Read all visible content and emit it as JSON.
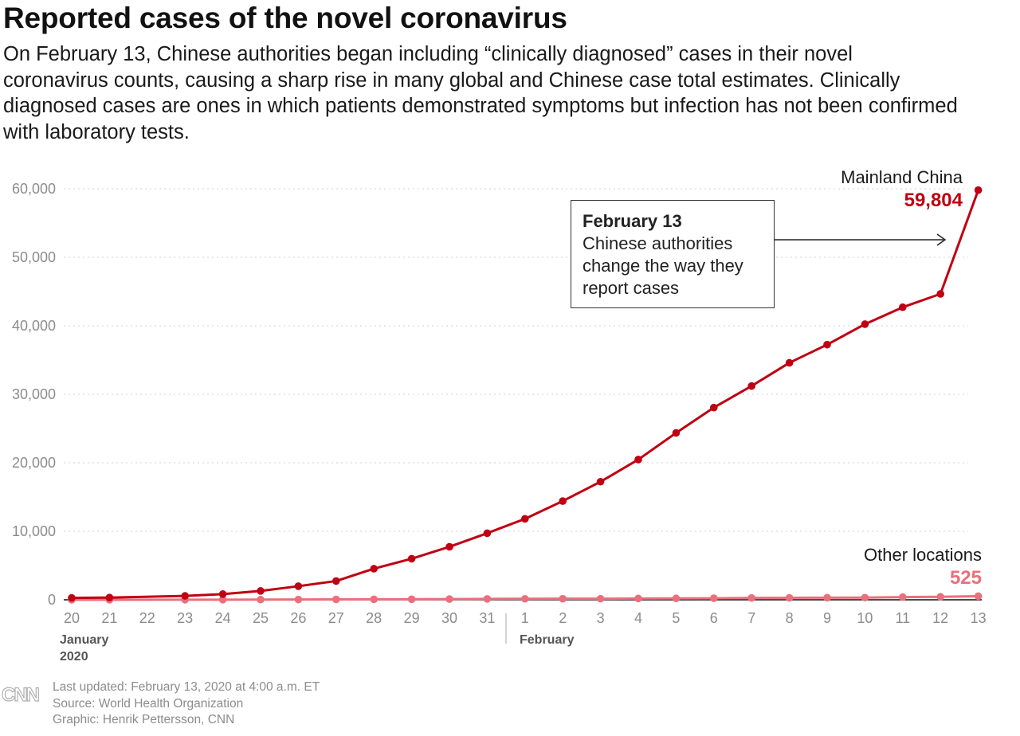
{
  "title": "Reported cases of the novel coronavirus",
  "subtitle": "On February 13, Chinese authorities began including “clinically diagnosed” cases in their novel coronavirus counts, causing a sharp rise in many global and Chinese case total estimates. Clinically diagnosed cases are ones in which patients demonstrated symptoms but infection has not been confirmed with laboratory tests.",
  "annotation": {
    "heading": "February 13",
    "text": "Chinese authorities change the way they report cases"
  },
  "months": {
    "january_line1": "January",
    "january_line2": "2020",
    "february": "February"
  },
  "footer": {
    "updated": "Last updated: February 13, 2020 at 4:00 a.m. ET",
    "source": "Source: World Health Organization",
    "graphic": "Graphic: Henrik Pettersson, CNN"
  },
  "logo_text": "CNN",
  "colors": {
    "china": "#c00012",
    "other": "#e9707c",
    "grid": "#d9d9d9",
    "tick": "#8c8c8c"
  },
  "chart_data": {
    "type": "line",
    "title": "Reported cases of the novel coronavirus",
    "xlabel": "",
    "ylabel": "",
    "ylim": [
      0,
      60000
    ],
    "yticks": [
      0,
      10000,
      20000,
      30000,
      40000,
      50000,
      60000
    ],
    "ytick_labels": [
      "0",
      "10,000",
      "20,000",
      "30,000",
      "40,000",
      "50,000",
      "60,000"
    ],
    "grid": true,
    "categories": [
      "20",
      "21",
      "22",
      "23",
      "24",
      "25",
      "26",
      "27",
      "28",
      "29",
      "30",
      "31",
      "1",
      "2",
      "3",
      "4",
      "5",
      "6",
      "7",
      "8",
      "9",
      "10",
      "11",
      "12",
      "13"
    ],
    "series": [
      {
        "name": "Mainland China",
        "label_value": "59,804",
        "values": [
          278,
          326,
          null,
          571,
          830,
          1297,
          1985,
          2741,
          4537,
          5997,
          7736,
          9720,
          11821,
          14411,
          17238,
          20471,
          24363,
          28060,
          31211,
          34598,
          37251,
          40235,
          42708,
          44653,
          59804
        ]
      },
      {
        "name": "Other locations",
        "label_value": "525",
        "values": [
          4,
          6,
          null,
          10,
          21,
          29,
          41,
          54,
          68,
          82,
          106,
          132,
          146,
          153,
          159,
          191,
          206,
          225,
          270,
          288,
          307,
          319,
          395,
          441,
          525
        ]
      }
    ]
  }
}
